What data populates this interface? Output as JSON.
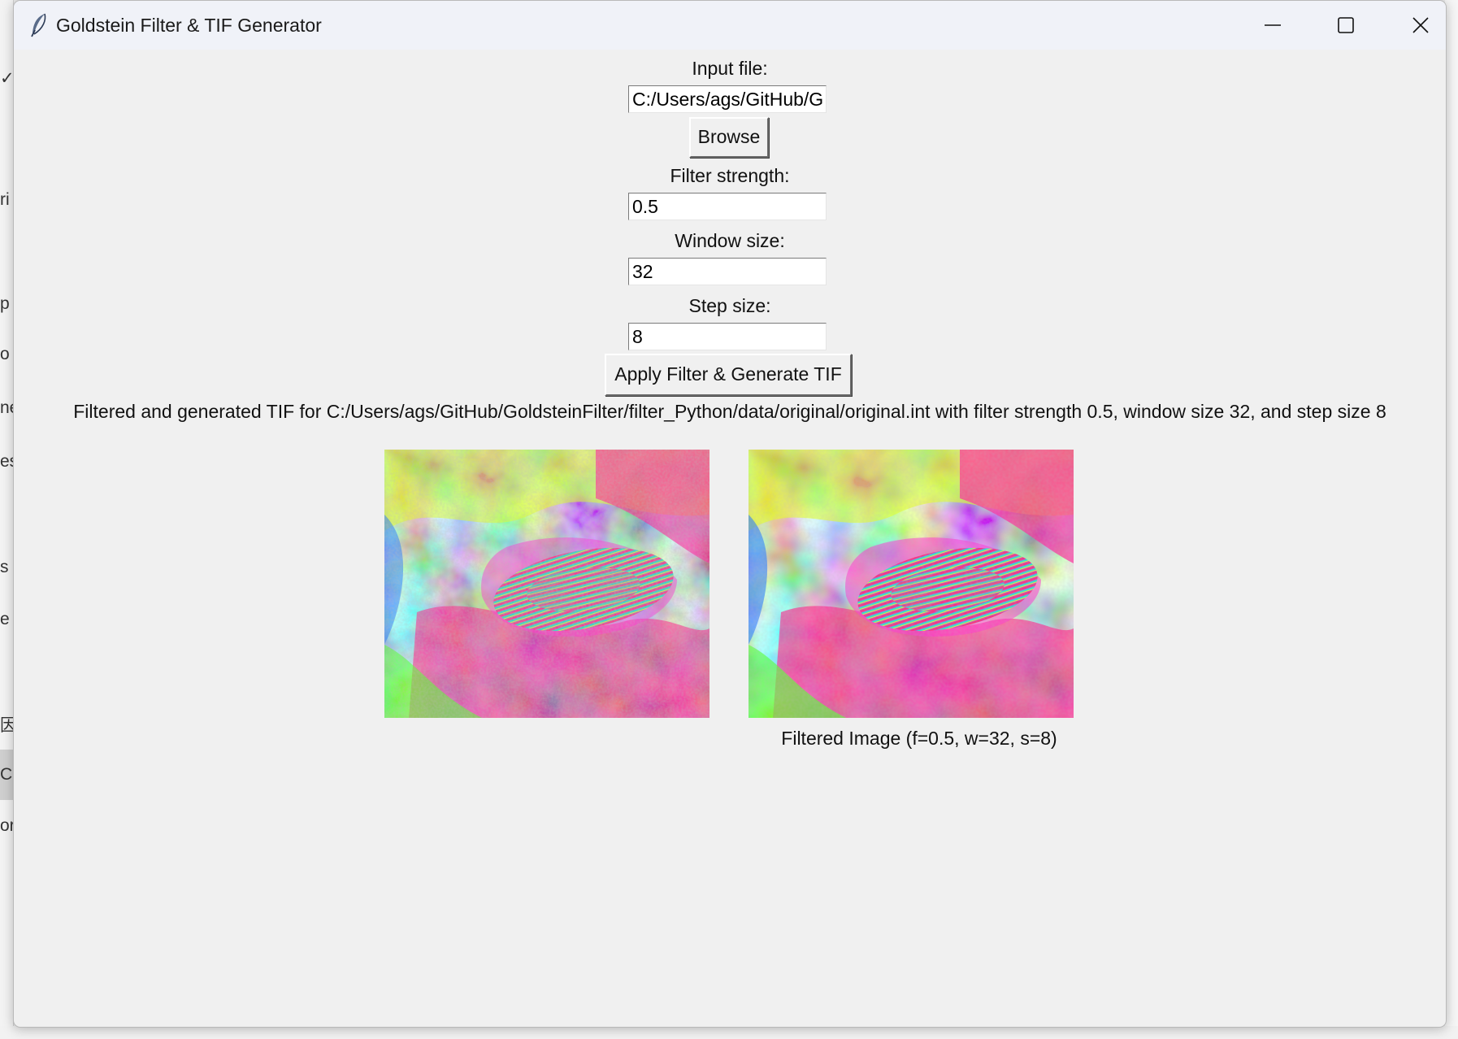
{
  "window": {
    "title": "Goldstein Filter & TIF Generator",
    "icon": "feather-icon",
    "controls": [
      "minimize-icon",
      "maximize-icon",
      "close-icon"
    ]
  },
  "form": {
    "input_file_label": "Input file:",
    "input_file_value": "C:/Users/ags/GitHub/GoldsteinFilter/filter_Python/data/original/original.int",
    "browse_label": "Browse",
    "filter_strength_label": "Filter strength:",
    "filter_strength_value": "0.5",
    "window_size_label": "Window size:",
    "window_size_value": "32",
    "step_size_label": "Step size:",
    "step_size_value": "8",
    "apply_label": "Apply Filter & Generate TIF"
  },
  "status_text": "Filtered and generated TIF for C:/Users/ags/GitHub/GoldsteinFilter/filter_Python/data/original/original.int with filter strength 0.5, window size 32, and step size 8",
  "images": {
    "original_caption": "",
    "filtered_caption": "Filtered Image (f=0.5, w=32, s=8)"
  },
  "background_fragments": [
    "✓",
    "ri",
    "p",
    "o",
    "ne",
    "es",
    "s",
    "e",
    "因",
    "C",
    "or"
  ],
  "colors": {
    "window_bg": "#f0f0f0",
    "titlebar_bg": "#f0f2f8",
    "accent": "#000000"
  }
}
